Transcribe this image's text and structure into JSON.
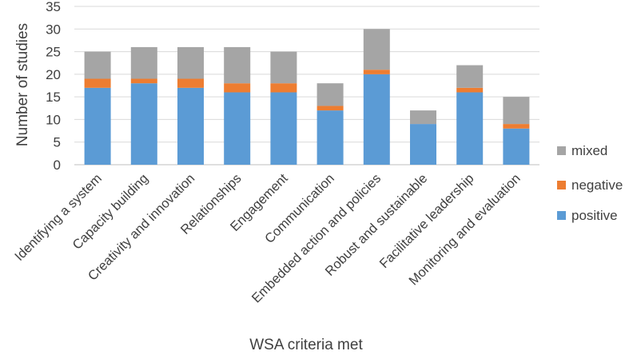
{
  "chart_data": {
    "type": "bar",
    "stacked": true,
    "title": "",
    "xlabel": "WSA criteria met",
    "ylabel": "Number of studies",
    "ylim": [
      0,
      35
    ],
    "yticks": [
      0,
      5,
      10,
      15,
      20,
      25,
      30,
      35
    ],
    "grid": true,
    "legend_position": "right",
    "categories": [
      "Identifying a system",
      "Capacity building",
      "Creativity and innovation",
      "Relationships",
      "Engagement",
      "Communication",
      "Embedded action and policies",
      "Robust and sustainable",
      "Facilitative leadership",
      "Monitoring and evaluation"
    ],
    "series": [
      {
        "name": "positive",
        "color": "#5b9bd5",
        "values": [
          17,
          18,
          17,
          16,
          16,
          12,
          20,
          9,
          16,
          8
        ]
      },
      {
        "name": "negative",
        "color": "#ed7d31",
        "values": [
          2,
          1,
          2,
          2,
          2,
          1,
          1,
          0,
          1,
          1
        ]
      },
      {
        "name": "mixed",
        "color": "#a5a5a5",
        "values": [
          6,
          7,
          7,
          8,
          7,
          5,
          9,
          3,
          5,
          6
        ]
      }
    ]
  }
}
